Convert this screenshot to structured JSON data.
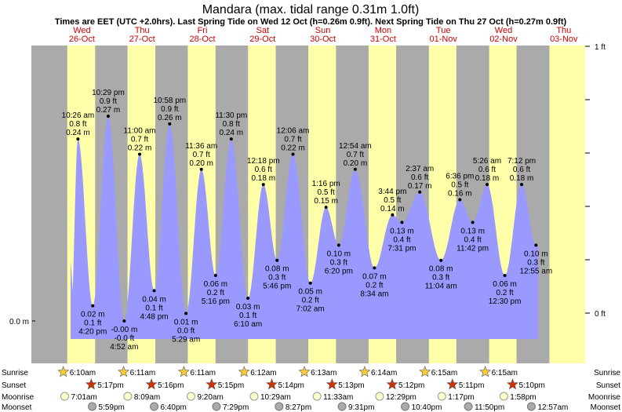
{
  "title": "Mandara (max. tidal range 0.31m 1.0ft)",
  "subtitle": "Times are EET (UTC +2.0hrs). Last Spring Tide on Wed 12 Oct (h=0.26m 0.9ft). Next Spring Tide on Thu 27 Oct (h=0.27m 0.9ft)",
  "colors": {
    "night": "#aaaaaa",
    "day": "#ffffaa",
    "tide": "#9999ff",
    "date": "#cc0000"
  },
  "days": [
    {
      "dow": "Wed",
      "date": "26-Oct"
    },
    {
      "dow": "Thu",
      "date": "27-Oct"
    },
    {
      "dow": "Fri",
      "date": "28-Oct"
    },
    {
      "dow": "Sat",
      "date": "29-Oct"
    },
    {
      "dow": "Sun",
      "date": "30-Oct"
    },
    {
      "dow": "Mon",
      "date": "31-Oct"
    },
    {
      "dow": "Tue",
      "date": "01-Nov"
    },
    {
      "dow": "Wed",
      "date": "02-Nov"
    },
    {
      "dow": "Thu",
      "date": "03-Nov"
    }
  ],
  "axis": {
    "left_ticks": [
      {
        "label": "0.0 m",
        "value_m": 0.0
      }
    ],
    "right_ticks": [
      {
        "label": "0 ft",
        "value_ft": 0
      },
      {
        "label": "1 ft",
        "value_ft": 1
      }
    ]
  },
  "row_labels": [
    "Sunrise",
    "Sunset",
    "Moonrise",
    "Moonset"
  ],
  "chart_data": {
    "type": "area",
    "title": "Mandara (max. tidal range 0.31m 1.0ft)",
    "ylim_m": [
      -0.07,
      0.3
    ],
    "series": [
      {
        "points": [
          {
            "day": 0,
            "hhmm": "10:26 am",
            "m": 0.24,
            "ft": "0.8 ft",
            "type": "high"
          },
          {
            "day": 0,
            "hhmm": "4:20 pm",
            "m": 0.02,
            "ft": "0.1 ft",
            "type": "low"
          },
          {
            "day": 0,
            "hhmm": "10:29 pm",
            "m": 0.27,
            "ft": "0.9 ft",
            "type": "high"
          },
          {
            "day": 1,
            "hhmm": "4:52 am",
            "m": -0.0,
            "mlabel": "-0.00 m",
            "ft": "-0.0 ft",
            "type": "low"
          },
          {
            "day": 1,
            "hhmm": "11:00 am",
            "m": 0.22,
            "ft": "0.7 ft",
            "type": "high"
          },
          {
            "day": 1,
            "hhmm": "4:48 pm",
            "m": 0.04,
            "ft": "0.1 ft",
            "type": "low"
          },
          {
            "day": 1,
            "hhmm": "10:58 pm",
            "m": 0.26,
            "ft": "0.9 ft",
            "type": "high"
          },
          {
            "day": 2,
            "hhmm": "5:29 am",
            "m": 0.01,
            "ft": "0.0 ft",
            "type": "low"
          },
          {
            "day": 2,
            "hhmm": "11:36 am",
            "m": 0.2,
            "ft": "0.7 ft",
            "type": "high"
          },
          {
            "day": 2,
            "hhmm": "5:16 pm",
            "m": 0.06,
            "ft": "0.2 ft",
            "type": "low"
          },
          {
            "day": 2,
            "hhmm": "11:30 pm",
            "m": 0.24,
            "ft": "0.8 ft",
            "type": "high"
          },
          {
            "day": 3,
            "hhmm": "6:10 am",
            "m": 0.03,
            "ft": "0.1 ft",
            "type": "low"
          },
          {
            "day": 3,
            "hhmm": "12:18 pm",
            "m": 0.18,
            "ft": "0.6 ft",
            "type": "high"
          },
          {
            "day": 3,
            "hhmm": "5:46 pm",
            "m": 0.08,
            "ft": "0.3 ft",
            "type": "low"
          },
          {
            "day": 4,
            "hhmm": "12:06 am",
            "m": 0.22,
            "ft": "0.7 ft",
            "type": "high"
          },
          {
            "day": 4,
            "hhmm": "7:02 am",
            "m": 0.05,
            "ft": "0.2 ft",
            "type": "low"
          },
          {
            "day": 4,
            "hhmm": "1:16 pm",
            "m": 0.15,
            "ft": "0.5 ft",
            "type": "high"
          },
          {
            "day": 4,
            "hhmm": "6:20 pm",
            "m": 0.1,
            "ft": "0.3 ft",
            "type": "low"
          },
          {
            "day": 5,
            "hhmm": "12:54 am",
            "m": 0.2,
            "ft": "0.7 ft",
            "type": "high"
          },
          {
            "day": 5,
            "hhmm": "8:34 am",
            "m": 0.07,
            "ft": "0.2 ft",
            "type": "low"
          },
          {
            "day": 5,
            "hhmm": "3:44 pm",
            "m": 0.14,
            "ft": "0.5 ft",
            "type": "high"
          },
          {
            "day": 5,
            "hhmm": "7:31 pm",
            "m": 0.13,
            "ft": "0.4 ft",
            "type": "low"
          },
          {
            "day": 6,
            "hhmm": "2:37 am",
            "m": 0.17,
            "ft": "0.6 ft",
            "type": "high"
          },
          {
            "day": 6,
            "hhmm": "11:04 am",
            "m": 0.08,
            "ft": "0.3 ft",
            "type": "low"
          },
          {
            "day": 6,
            "hhmm": "6:36 pm",
            "m": 0.16,
            "ft": "0.5 ft",
            "type": "high"
          },
          {
            "day": 6,
            "hhmm": "11:42 pm",
            "m": 0.13,
            "ft": "0.4 ft",
            "type": "low"
          },
          {
            "day": 7,
            "hhmm": "5:26 am",
            "m": 0.18,
            "ft": "0.6 ft",
            "type": "high"
          },
          {
            "day": 7,
            "hhmm": "12:30 pm",
            "m": 0.06,
            "ft": "0.2 ft",
            "type": "low"
          },
          {
            "day": 7,
            "hhmm": "7:12 pm",
            "m": 0.18,
            "ft": "0.6 ft",
            "type": "high"
          },
          {
            "day": 8,
            "hhmm": "12:55 am",
            "m": 0.1,
            "ft": "0.3 ft",
            "type": "low"
          }
        ]
      }
    ],
    "sun_moon": [
      {
        "sunrise": "6:10am",
        "sunset": "5:17pm",
        "moonrise": "7:01am",
        "moonset": "5:59pm"
      },
      {
        "sunrise": "6:11am",
        "sunset": "5:16pm",
        "moonrise": "8:09am",
        "moonset": "6:40pm"
      },
      {
        "sunrise": "6:11am",
        "sunset": "5:15pm",
        "moonrise": "9:20am",
        "moonset": "7:29pm"
      },
      {
        "sunrise": "6:12am",
        "sunset": "5:14pm",
        "moonrise": "10:29am",
        "moonset": "8:27pm"
      },
      {
        "sunrise": "6:13am",
        "sunset": "5:13pm",
        "moonrise": "11:33am",
        "moonset": "9:31pm"
      },
      {
        "sunrise": "6:14am",
        "sunset": "5:12pm",
        "moonrise": "12:29pm",
        "moonset": "10:40pm"
      },
      {
        "sunrise": "6:15am",
        "sunset": "5:11pm",
        "moonrise": "1:17pm",
        "moonset": "11:50pm"
      },
      {
        "sunrise": "6:15am",
        "sunset": "5:10pm",
        "moonrise": "1:58pm",
        "moonset": "12:57am"
      }
    ],
    "icons": {
      "sun": "star-icon",
      "moon": "moon-disc-icon"
    }
  }
}
